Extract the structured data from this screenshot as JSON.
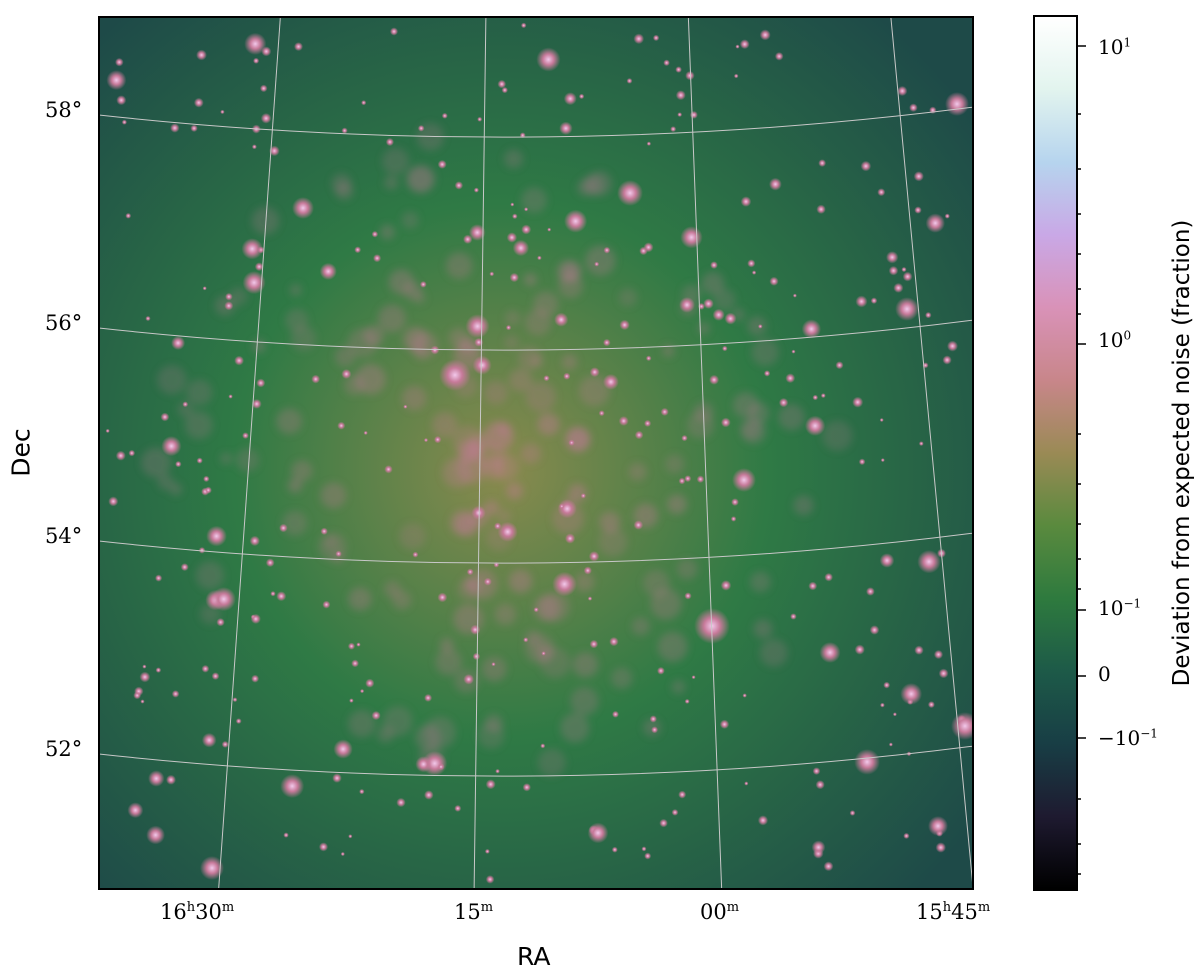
{
  "axes": {
    "x_title": "RA",
    "y_title": "Dec",
    "ra_ticks": [
      {
        "h": "16",
        "m": "30",
        "show_h": true
      },
      {
        "h": "",
        "m": "15",
        "show_h": false
      },
      {
        "h": "",
        "m": "00",
        "show_h": false
      },
      {
        "h": "15",
        "m": "45",
        "show_h": true
      }
    ],
    "dec_ticks": [
      "58",
      "56",
      "54",
      "52"
    ],
    "dec_unit": "°"
  },
  "colorbar": {
    "title": "Deviation from expected noise (fraction)",
    "labels": [
      {
        "text": "10",
        "exp": "1"
      },
      {
        "text": "10",
        "exp": "0"
      },
      {
        "text": "10",
        "exp": "−1"
      },
      {
        "text": "0",
        "exp": ""
      },
      {
        "text": "−10",
        "exp": "−1"
      }
    ],
    "colormap": [
      "#000000",
      "#1e1a30",
      "#183e45",
      "#1d5a48",
      "#2e7a3e",
      "#5a8a3e",
      "#9a8a55",
      "#c8868a",
      "#d992b8",
      "#c9a8e6",
      "#b6d4ee",
      "#e2f4ee",
      "#ffffff"
    ]
  },
  "image": {
    "colors": {
      "background_edge": "#1e4a48",
      "background_mid": "#2f7a45",
      "background_core": "#8a8a4e",
      "source_halo": "#c77a9a",
      "source_core": "#f2c8ea",
      "grid_line": "#c8c8c8"
    }
  }
}
